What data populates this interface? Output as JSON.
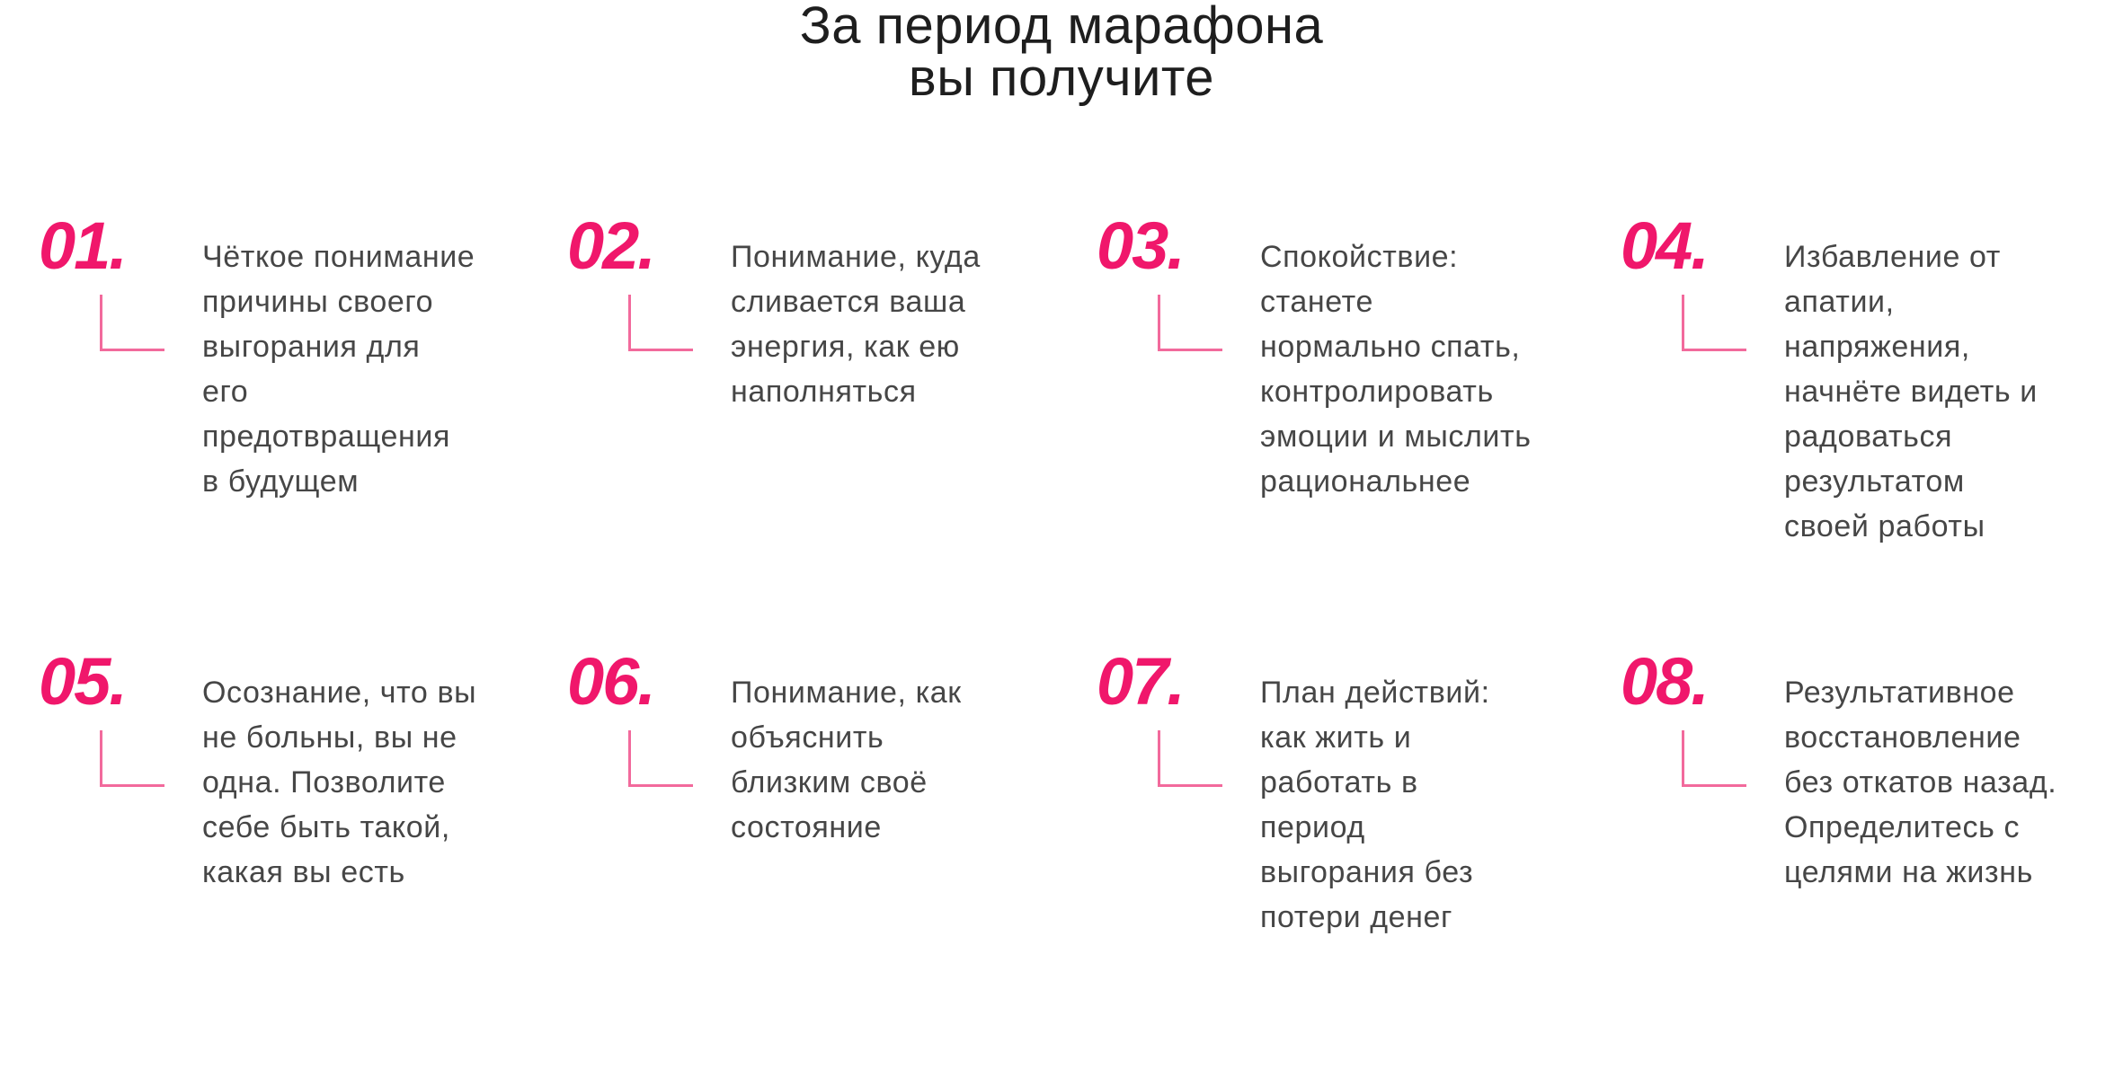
{
  "title": {
    "lines": [
      "За период марафона",
      "вы получите"
    ]
  },
  "accent_color": "#f0176b",
  "items": [
    {
      "number": "01.",
      "lines": [
        "Чёткое понимание",
        "причины своего",
        "выгорания для",
        "его",
        "предотвращения",
        "в будущем"
      ]
    },
    {
      "number": "02.",
      "lines": [
        "Понимание, куда",
        "сливается ваша",
        "энергия, как ею",
        "наполняться"
      ]
    },
    {
      "number": "03.",
      "lines": [
        "Спокойствие:",
        "станете",
        "нормально спать,",
        "контролировать",
        "эмоции и мыслить",
        "рациональнее"
      ]
    },
    {
      "number": "04.",
      "lines": [
        "Избавление от",
        "апатии,",
        "напряжения,",
        "начнёте видеть и",
        "радоваться",
        "результатом",
        "своей работы"
      ]
    },
    {
      "number": "05.",
      "lines": [
        "Осознание, что вы",
        "не больны, вы не",
        "одна. Позволите",
        "себе быть такой,",
        "какая вы есть"
      ]
    },
    {
      "number": "06.",
      "lines": [
        "Понимание, как",
        "объяснить",
        "близким своё",
        "состояние"
      ]
    },
    {
      "number": "07.",
      "lines": [
        "План действий:",
        "как жить и",
        "работать в",
        "период",
        "выгорания без",
        "потери денег"
      ]
    },
    {
      "number": "08.",
      "lines": [
        "Результативное",
        "восстановление",
        "без откатов назад.",
        "Определитесь с",
        "целями на жизнь"
      ]
    }
  ]
}
